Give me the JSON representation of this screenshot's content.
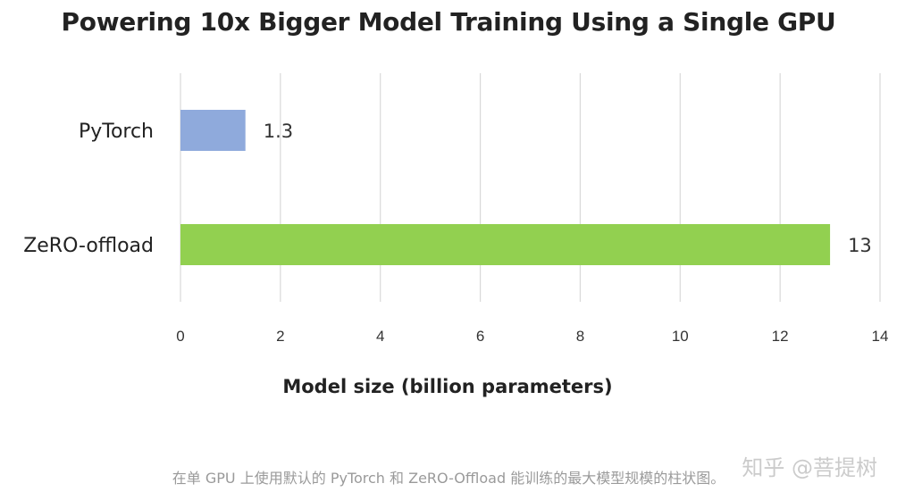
{
  "chart_data": {
    "type": "bar",
    "orientation": "horizontal",
    "title": "Powering 10x Bigger Model Training Using a Single GPU",
    "categories": [
      "PyTorch",
      "ZeRO-offload"
    ],
    "values": [
      1.3,
      13
    ],
    "data_labels": [
      "1.3",
      "13"
    ],
    "colors": [
      "#8faadc",
      "#92d050"
    ],
    "xlabel": "Model size (billion parameters)",
    "ylabel": "",
    "xlim": [
      0,
      14
    ],
    "xticks": [
      0,
      2,
      4,
      6,
      8,
      10,
      12,
      14
    ],
    "grid": true
  },
  "caption": "在单 GPU 上使用默认的 PyTorch 和 ZeRO-Offload 能训练的最大模型规模的柱状图。",
  "watermark": "知乎 @菩提树"
}
